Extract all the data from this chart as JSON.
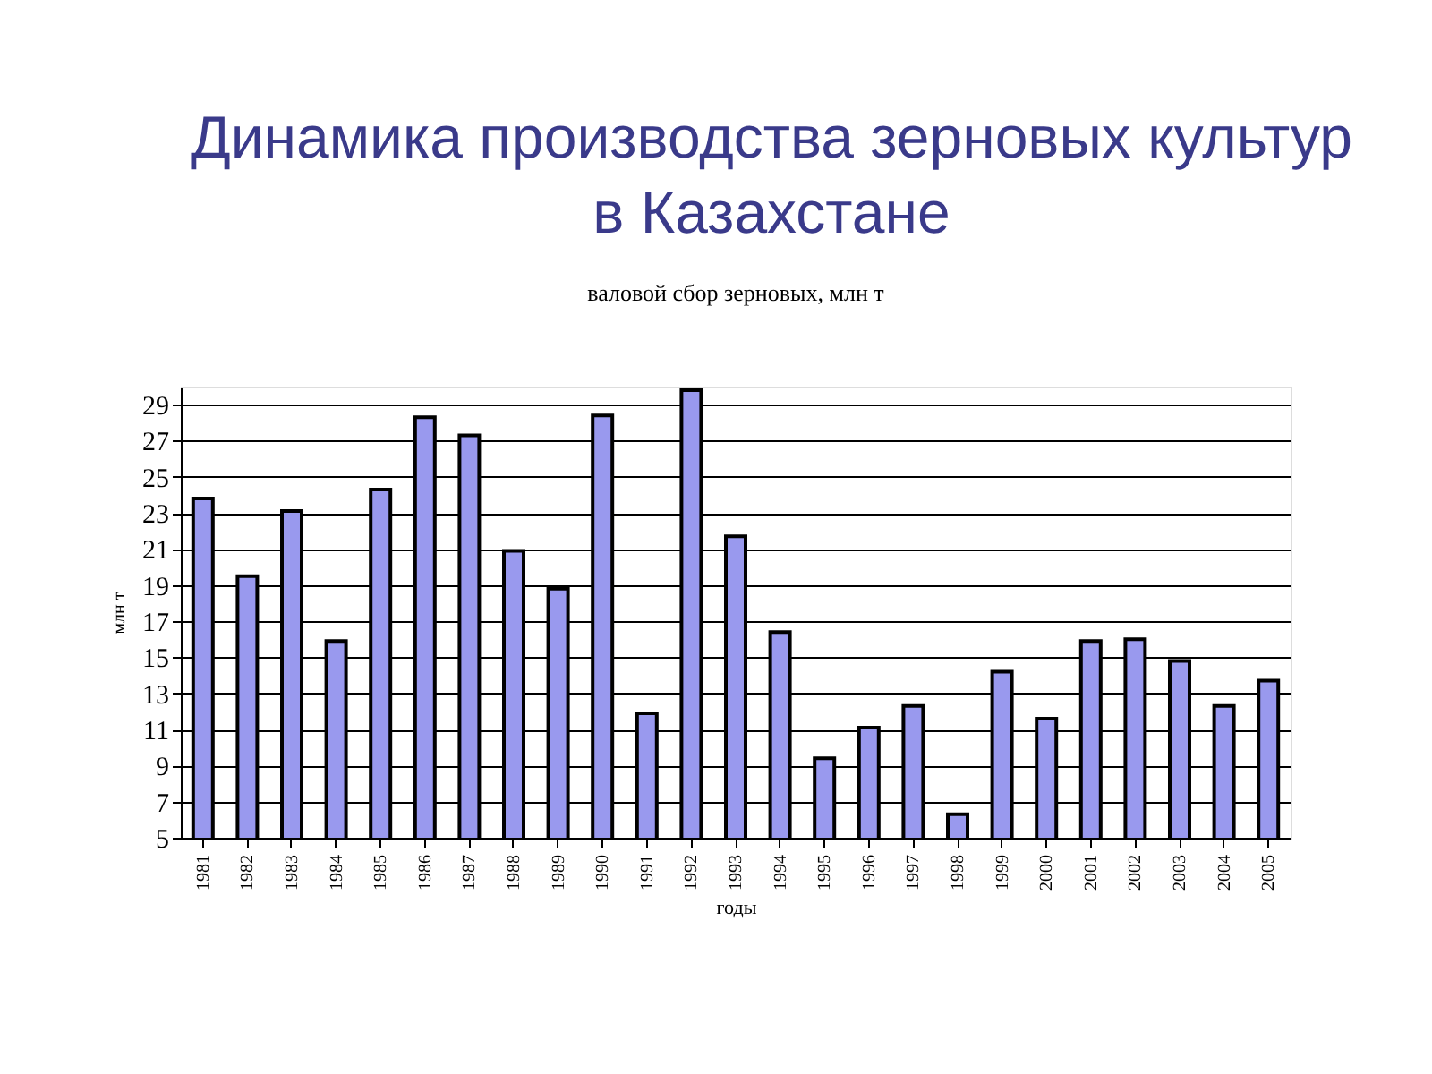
{
  "chart_data": {
    "type": "bar",
    "title": "Динамика производства зерновых культур в Казахстане",
    "subtitle": "валовой сбор зерновых, млн т",
    "xlabel": "годы",
    "ylabel": "млн т",
    "categories": [
      "1981",
      "1982",
      "1983",
      "1984",
      "1985",
      "1986",
      "1987",
      "1988",
      "1989",
      "1990",
      "1991",
      "1992",
      "1993",
      "1994",
      "1995",
      "1996",
      "1997",
      "1998",
      "1999",
      "2000",
      "2001",
      "2002",
      "2003",
      "2004",
      "2005"
    ],
    "values": [
      23.8,
      19.5,
      23.1,
      15.9,
      24.3,
      28.3,
      27.3,
      20.9,
      18.8,
      28.4,
      11.9,
      29.8,
      21.7,
      16.4,
      9.4,
      11.1,
      12.3,
      6.3,
      14.2,
      11.6,
      15.9,
      16.0,
      14.8,
      12.3,
      13.7
    ],
    "color": "#9999ee",
    "ylim": [
      5,
      30
    ],
    "yticks": [
      5,
      7,
      9,
      11,
      13,
      15,
      17,
      19,
      21,
      23,
      25,
      27,
      29
    ],
    "grid": "y"
  }
}
